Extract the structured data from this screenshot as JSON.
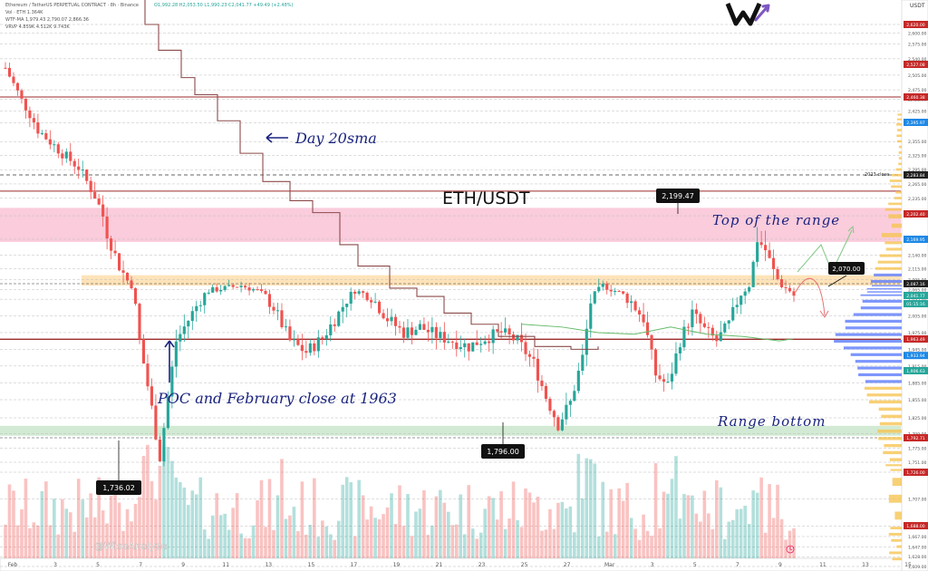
{
  "header": {
    "title_line": "Ethereum / TetherUS PERPETUAL CONTRACT · 8h · Binance",
    "ohlc_line": "O1,992.28 H2,053.50 L1,990.23 C2,041.77 +49.49 (+2.48%)",
    "vol_line": "Vol · ETH 1.364K",
    "ma_line": "WTF-MA 1,979.43 2,790.07 2,866.36",
    "vrvp_line": "VRVP 4.859K 4.512K 9.743K"
  },
  "axis": {
    "currency": "USDT"
  },
  "watermark": {
    "brand": "@WiseAnalyze"
  },
  "colors": {
    "up": "#26a69a",
    "down": "#ef5350",
    "sma": "#8d4a4a",
    "annotation": "#1a237e",
    "resistance_zone": "#f48fb1",
    "support_zone": "#a5d6a7",
    "poc_zone": "#ffcc80",
    "key_line": "#9e2a2a",
    "last_price": "#222222"
  },
  "chart_data": {
    "type": "candlestick",
    "title": "ETH/USDT",
    "ylim": [
      1600,
      2640
    ],
    "y_ticks": [
      1609,
      1628,
      1647,
      1667,
      1687,
      1707,
      1726,
      1751,
      1775,
      1799,
      1825,
      1855,
      1885,
      1915,
      1945,
      1975,
      2005,
      2035,
      2065,
      2095,
      2115,
      2140,
      2170,
      2200,
      2235,
      2265,
      2295,
      2325,
      2355,
      2395,
      2425,
      2455,
      2475,
      2505,
      2540,
      2575,
      2600,
      2620
    ],
    "y_tick_labels": [
      "1,609.00",
      "1,628.00",
      "1,647.00",
      "1,667.00",
      "1,687.00",
      "1,707.00",
      "1,726.00",
      "1,751.00",
      "1,775.00",
      "1,799.00",
      "1,825.00",
      "1,855.00",
      "1,885.00",
      "1,915.00",
      "1,945.00",
      "1,975.00",
      "2,005.00",
      "2,035.00",
      "2,065.00",
      "2,095.00",
      "2,115.00",
      "2,140.00",
      "2,170.00",
      "2,200.00",
      "2,235.00",
      "2,265.00",
      "2,295.00",
      "2,325.00",
      "2,355.00",
      "2,395.00",
      "2,425.00",
      "2,455.00",
      "2,475.00",
      "2,505.00",
      "2,540.00",
      "2,575.00",
      "2,600.00",
      "2,620.00"
    ],
    "x_tick_labels": [
      "Feb",
      "3",
      "5",
      "7",
      "9",
      "11",
      "13",
      "15",
      "17",
      "19",
      "21",
      "23",
      "25",
      "27",
      "Mar",
      "3",
      "5",
      "7",
      "9",
      "11",
      "13",
      "15"
    ],
    "candle_count": 195,
    "price_tags": [
      {
        "label": "2,620.00",
        "value": 2620,
        "kind": "down"
      },
      {
        "label": "2,527.08",
        "value": 2527.08,
        "kind": "down"
      },
      {
        "label": "2,460.38",
        "value": 2460.38,
        "kind": "down"
      },
      {
        "label": "2,395.97",
        "value": 2395.97,
        "kind": "blue"
      },
      {
        "label": "2,283.84",
        "value": 2283.84,
        "kind": "dark"
      },
      {
        "label": "2,202.40",
        "value": 2202.4,
        "kind": "down"
      },
      {
        "label": "2,169.95",
        "value": 2169.95,
        "kind": "blue"
      },
      {
        "label": "2,087.16",
        "value": 2087.16,
        "kind": "dark"
      },
      {
        "label": "2,041.77",
        "value": 2041.77,
        "kind": "up"
      },
      {
        "label": "01:15:16",
        "value": 2027,
        "kind": "up"
      },
      {
        "label": "1,963.49",
        "value": 1963.49,
        "kind": "down"
      },
      {
        "label": "1,933.94",
        "value": 1933.94,
        "kind": "blue"
      },
      {
        "label": "1,906.63",
        "value": 1906.63,
        "kind": "up"
      },
      {
        "label": "1,792.71",
        "value": 1792.71,
        "kind": "down"
      },
      {
        "label": "1,726.00",
        "value": 1726,
        "kind": "down"
      },
      {
        "label": "1,688.00",
        "value": 1688,
        "kind": "down"
      }
    ],
    "close_2023_label": "2023 close",
    "zones": {
      "top_of_range": [
        2165,
        2215
      ],
      "poc_band": [
        2080,
        2103
      ],
      "range_bottom": [
        1796,
        1812
      ]
    },
    "poc": 1963,
    "key_levels": [
      2283.84,
      2250,
      2460.38
    ],
    "callouts": [
      {
        "label": "2,199.47",
        "price": 2199.47
      },
      {
        "label": "1,796.00",
        "price": 1796
      },
      {
        "label": "1,736.02",
        "price": 1736.02
      },
      {
        "label": "2,070.00",
        "price": 2070
      }
    ],
    "annotations": {
      "sma": "Day 20sma",
      "top": "Top of the range",
      "bottom": "Range bottom",
      "poc": "POC and February close at 1963"
    }
  }
}
